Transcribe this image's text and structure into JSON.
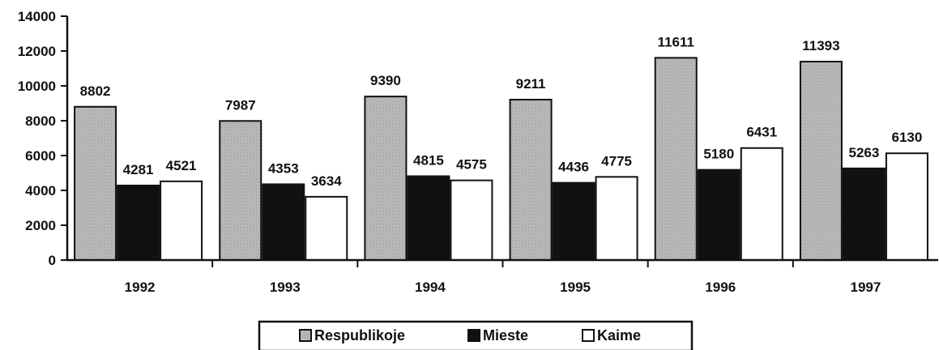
{
  "chart_data": {
    "type": "bar",
    "title": "",
    "xlabel": "",
    "ylabel": "",
    "categories": [
      "1992",
      "1993",
      "1994",
      "1995",
      "1996",
      "1997"
    ],
    "series": [
      {
        "name": "Respublikoje",
        "values": [
          8802,
          7987,
          9390,
          9211,
          11611,
          11393
        ],
        "color": "#bcbcbc"
      },
      {
        "name": "Mieste",
        "values": [
          4281,
          4353,
          4815,
          4436,
          5180,
          5263
        ],
        "color": "#111111"
      },
      {
        "name": "Kaime",
        "values": [
          4521,
          3634,
          4575,
          4775,
          6431,
          6130
        ],
        "color": "#ffffff"
      }
    ],
    "data_labels": [
      [
        "8802",
        "7987",
        "9390",
        "9211",
        "11611",
        "11393"
      ],
      [
        "4281",
        "4353",
        "4815",
        "4436",
        "5180",
        "5263"
      ],
      [
        "4521",
        "3634",
        "4575",
        "4775",
        "6431",
        "6130"
      ]
    ],
    "ylim": [
      0,
      14000
    ],
    "yticks": [
      0,
      2000,
      4000,
      6000,
      8000,
      10000,
      12000,
      14000
    ],
    "ytick_labels": [
      "0",
      "2000",
      "4000",
      "6000",
      "8000",
      "10000",
      "12000",
      "14000"
    ],
    "grid": false,
    "legend": {
      "position": "bottom-center",
      "entries": [
        "Respublikoje",
        "Mieste",
        "Kaime"
      ]
    }
  }
}
